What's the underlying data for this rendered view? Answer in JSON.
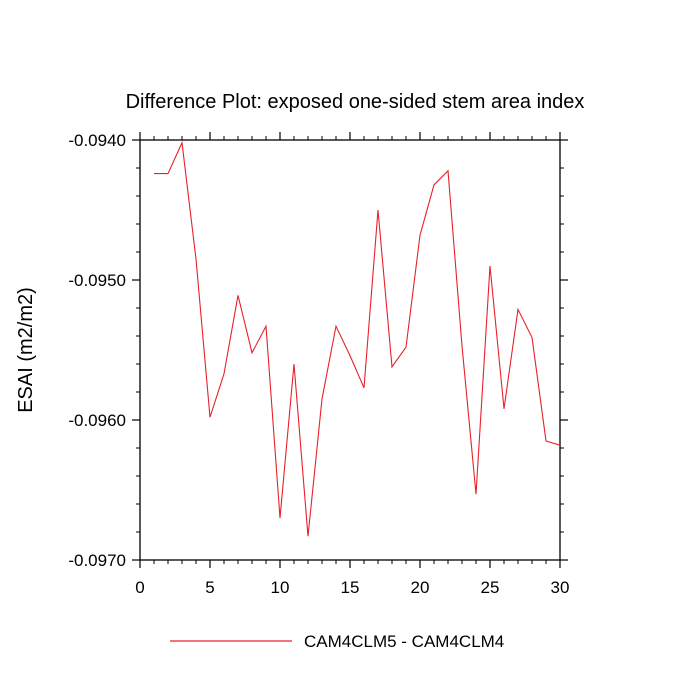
{
  "chart_data": {
    "type": "line",
    "title": "Difference Plot: exposed one-sided stem area index",
    "xlabel": "",
    "ylabel": "ESAI  (m2/m2)",
    "xlim": [
      0,
      30
    ],
    "ylim": [
      -0.097,
      -0.094
    ],
    "x_ticks": [
      0,
      5,
      10,
      15,
      20,
      25,
      30
    ],
    "x_tick_labels": [
      "0",
      "5",
      "10",
      "15",
      "20",
      "25",
      "30"
    ],
    "y_ticks": [
      -0.094,
      -0.095,
      -0.096,
      -0.097
    ],
    "y_tick_labels": [
      "-0.0940",
      "-0.0950",
      "-0.0960",
      "-0.0970"
    ],
    "grid": false,
    "legend_position": "bottom-center",
    "series": [
      {
        "name": "CAM4CLM5 - CAM4CLM4",
        "color": "#e8202a",
        "x": [
          1,
          2,
          3,
          4,
          5,
          6,
          7,
          8,
          9,
          10,
          11,
          12,
          13,
          14,
          15,
          16,
          17,
          18,
          19,
          20,
          21,
          22,
          23,
          24,
          25,
          26,
          27,
          28,
          29,
          30
        ],
        "y": [
          -0.09424,
          -0.09424,
          -0.09402,
          -0.09485,
          -0.09598,
          -0.09567,
          -0.09511,
          -0.09552,
          -0.09533,
          -0.0967,
          -0.0956,
          -0.09683,
          -0.09585,
          -0.09533,
          -0.09554,
          -0.09577,
          -0.0945,
          -0.09562,
          -0.09548,
          -0.09468,
          -0.09432,
          -0.09422,
          -0.09547,
          -0.09653,
          -0.0949,
          -0.09592,
          -0.09521,
          -0.09541,
          -0.09615,
          -0.09618
        ]
      }
    ]
  }
}
